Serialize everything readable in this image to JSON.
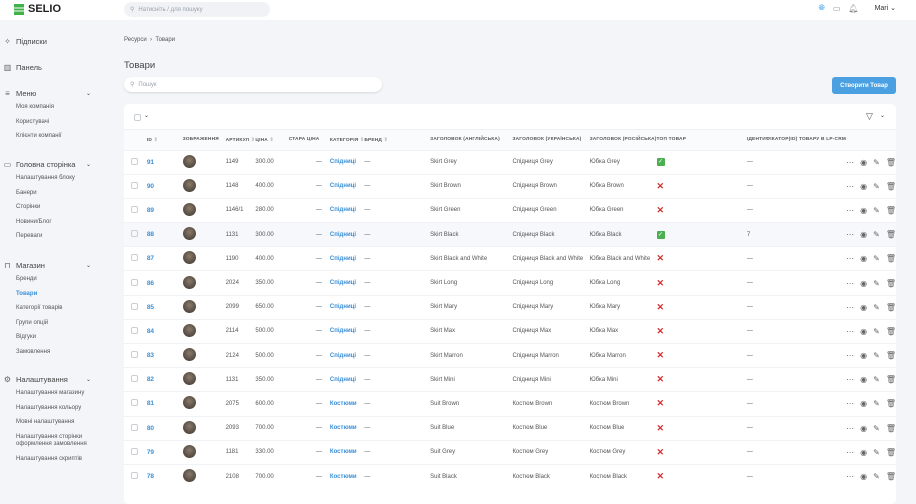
{
  "app": {
    "logo": "SELIO",
    "search_placeholder": "Натисніть / для пошуку",
    "user": "Mari"
  },
  "sidebar": {
    "sections": [
      {
        "label": "Підписки",
        "icon": "sparkles-icon",
        "items": []
      },
      {
        "label": "Панель",
        "icon": "bar-chart-icon",
        "items": []
      },
      {
        "label": "Меню",
        "icon": "menu-icon",
        "chevron": true,
        "items": [
          "Моя компанія",
          "Користувачі",
          "Клієнти компанії"
        ]
      },
      {
        "label": "Головна сторінка",
        "icon": "window-icon",
        "chevron": true,
        "items": [
          "Налаштування блоку",
          "Банери",
          "Сторінки",
          "Новини/Блог",
          "Переваги"
        ]
      },
      {
        "label": "Магазин",
        "icon": "shopping-bag-icon",
        "chevron": true,
        "items": [
          "Бренди",
          "Товари",
          "Категорії товарів",
          "Групи опцій",
          "Відгуки",
          "Замовлення"
        ]
      },
      {
        "label": "Налаштування",
        "icon": "gear-icon",
        "chevron": true,
        "items": [
          "Налаштування магазину",
          "Налаштування кольору",
          "Мовні налаштування",
          "Налаштування сторінки оформлення замовлення",
          "Налаштування скриптів"
        ]
      }
    ],
    "active_item": "Товари"
  },
  "breadcrumb": [
    "Ресурси",
    "Товари"
  ],
  "page": {
    "title": "Товари",
    "search_placeholder": "Пошук",
    "create_label": "Створити Товар"
  },
  "table": {
    "columns": [
      "ID",
      "ЗОБРАЖЕННЯ",
      "АРТИКУЛ",
      "ЦІНА",
      "СТАРА ЦІНА",
      "КАТЕГОРІЯ",
      "БРЕНД",
      "ЗАГОЛОВОК (АНГЛІЙСЬКА)",
      "ЗАГОЛОВОК (УКРАЇНСЬКА)",
      "ЗАГОЛОВОК (РОСІЙСЬКА)",
      "ТОП ТОВАР",
      "ІДЕНТИФІКАТОР(ID) ТОВАРУ В LP-CRM"
    ],
    "sortable": [
      true,
      false,
      true,
      true,
      false,
      true,
      true,
      false,
      false,
      false,
      false,
      false
    ],
    "rows": [
      {
        "id": "91",
        "sku": "1149",
        "price": "300.00",
        "old": "—",
        "cat": "Спідниці",
        "brand": "—",
        "en": "Skirt Grey",
        "uk": "Спідниця Grey",
        "ru": "Юбка Grey",
        "top": true,
        "lp": "—"
      },
      {
        "id": "90",
        "sku": "1148",
        "price": "400.00",
        "old": "—",
        "cat": "Спідниці",
        "brand": "—",
        "en": "Skirt Brown",
        "uk": "Спідниця Brown",
        "ru": "Юбка Brown",
        "top": false,
        "lp": "—"
      },
      {
        "id": "89",
        "sku": "1146/1",
        "price": "280.00",
        "old": "—",
        "cat": "Спідниці",
        "brand": "—",
        "en": "Skirt Green",
        "uk": "Спідниця Green",
        "ru": "Юбка Green",
        "top": false,
        "lp": "—"
      },
      {
        "id": "88",
        "sku": "1131",
        "price": "300.00",
        "old": "—",
        "cat": "Спідниці",
        "brand": "—",
        "en": "Skirt Black",
        "uk": "Спідниця Black",
        "ru": "Юбка Black",
        "top": true,
        "lp": "7"
      },
      {
        "id": "87",
        "sku": "1190",
        "price": "400.00",
        "old": "—",
        "cat": "Спідниці",
        "brand": "—",
        "en": "Skirt Black and White",
        "uk": "Спідниця Black and White",
        "ru": "Юбка Black and White",
        "top": false,
        "lp": "—"
      },
      {
        "id": "86",
        "sku": "2024",
        "price": "350.00",
        "old": "—",
        "cat": "Спідниці",
        "brand": "—",
        "en": "Skirt Long",
        "uk": "Спідниця Long",
        "ru": "Юбка Long",
        "top": false,
        "lp": "—"
      },
      {
        "id": "85",
        "sku": "2099",
        "price": "650.00",
        "old": "—",
        "cat": "Спідниці",
        "brand": "—",
        "en": "Skirt Mary",
        "uk": "Спідниця Mary",
        "ru": "Юбка Mary",
        "top": false,
        "lp": "—"
      },
      {
        "id": "84",
        "sku": "2114",
        "price": "500.00",
        "old": "—",
        "cat": "Спідниці",
        "brand": "—",
        "en": "Skirt Max",
        "uk": "Спідниця Max",
        "ru": "Юбка Max",
        "top": false,
        "lp": "—"
      },
      {
        "id": "83",
        "sku": "2124",
        "price": "500.00",
        "old": "—",
        "cat": "Спідниці",
        "brand": "—",
        "en": "Skirt Marron",
        "uk": "Спідниця Marron",
        "ru": "Юбка Marron",
        "top": false,
        "lp": "—"
      },
      {
        "id": "82",
        "sku": "1131",
        "price": "350.00",
        "old": "—",
        "cat": "Спідниці",
        "brand": "—",
        "en": "Skirt Mini",
        "uk": "Спідниця Mini",
        "ru": "Юбка Mini",
        "top": false,
        "lp": "—"
      },
      {
        "id": "81",
        "sku": "2075",
        "price": "600.00",
        "old": "—",
        "cat": "Костюми",
        "brand": "—",
        "en": "Suit Brown",
        "uk": "Костюм Brown",
        "ru": "Костюм Brown",
        "top": false,
        "lp": "—"
      },
      {
        "id": "80",
        "sku": "2093",
        "price": "700.00",
        "old": "—",
        "cat": "Костюми",
        "brand": "—",
        "en": "Suit Blue",
        "uk": "Костюм Blue",
        "ru": "Костюм Blue",
        "top": false,
        "lp": "—"
      },
      {
        "id": "79",
        "sku": "1181",
        "price": "330.00",
        "old": "—",
        "cat": "Костюми",
        "brand": "—",
        "en": "Suit Grey",
        "uk": "Костюм Grey",
        "ru": "Костюм Grey",
        "top": false,
        "lp": "—"
      },
      {
        "id": "78",
        "sku": "2108",
        "price": "700.00",
        "old": "—",
        "cat": "Костюми",
        "brand": "—",
        "en": "Suit Black",
        "uk": "Костюм Black",
        "ru": "Костюм Black",
        "top": false,
        "lp": "—"
      }
    ],
    "highlighted_row": "88"
  },
  "colors": {
    "accent": "#4aa0e0",
    "link": "#3b8fd6",
    "check": "#4caf50",
    "cross": "#d32f2f",
    "background": "#f3f5f9"
  }
}
